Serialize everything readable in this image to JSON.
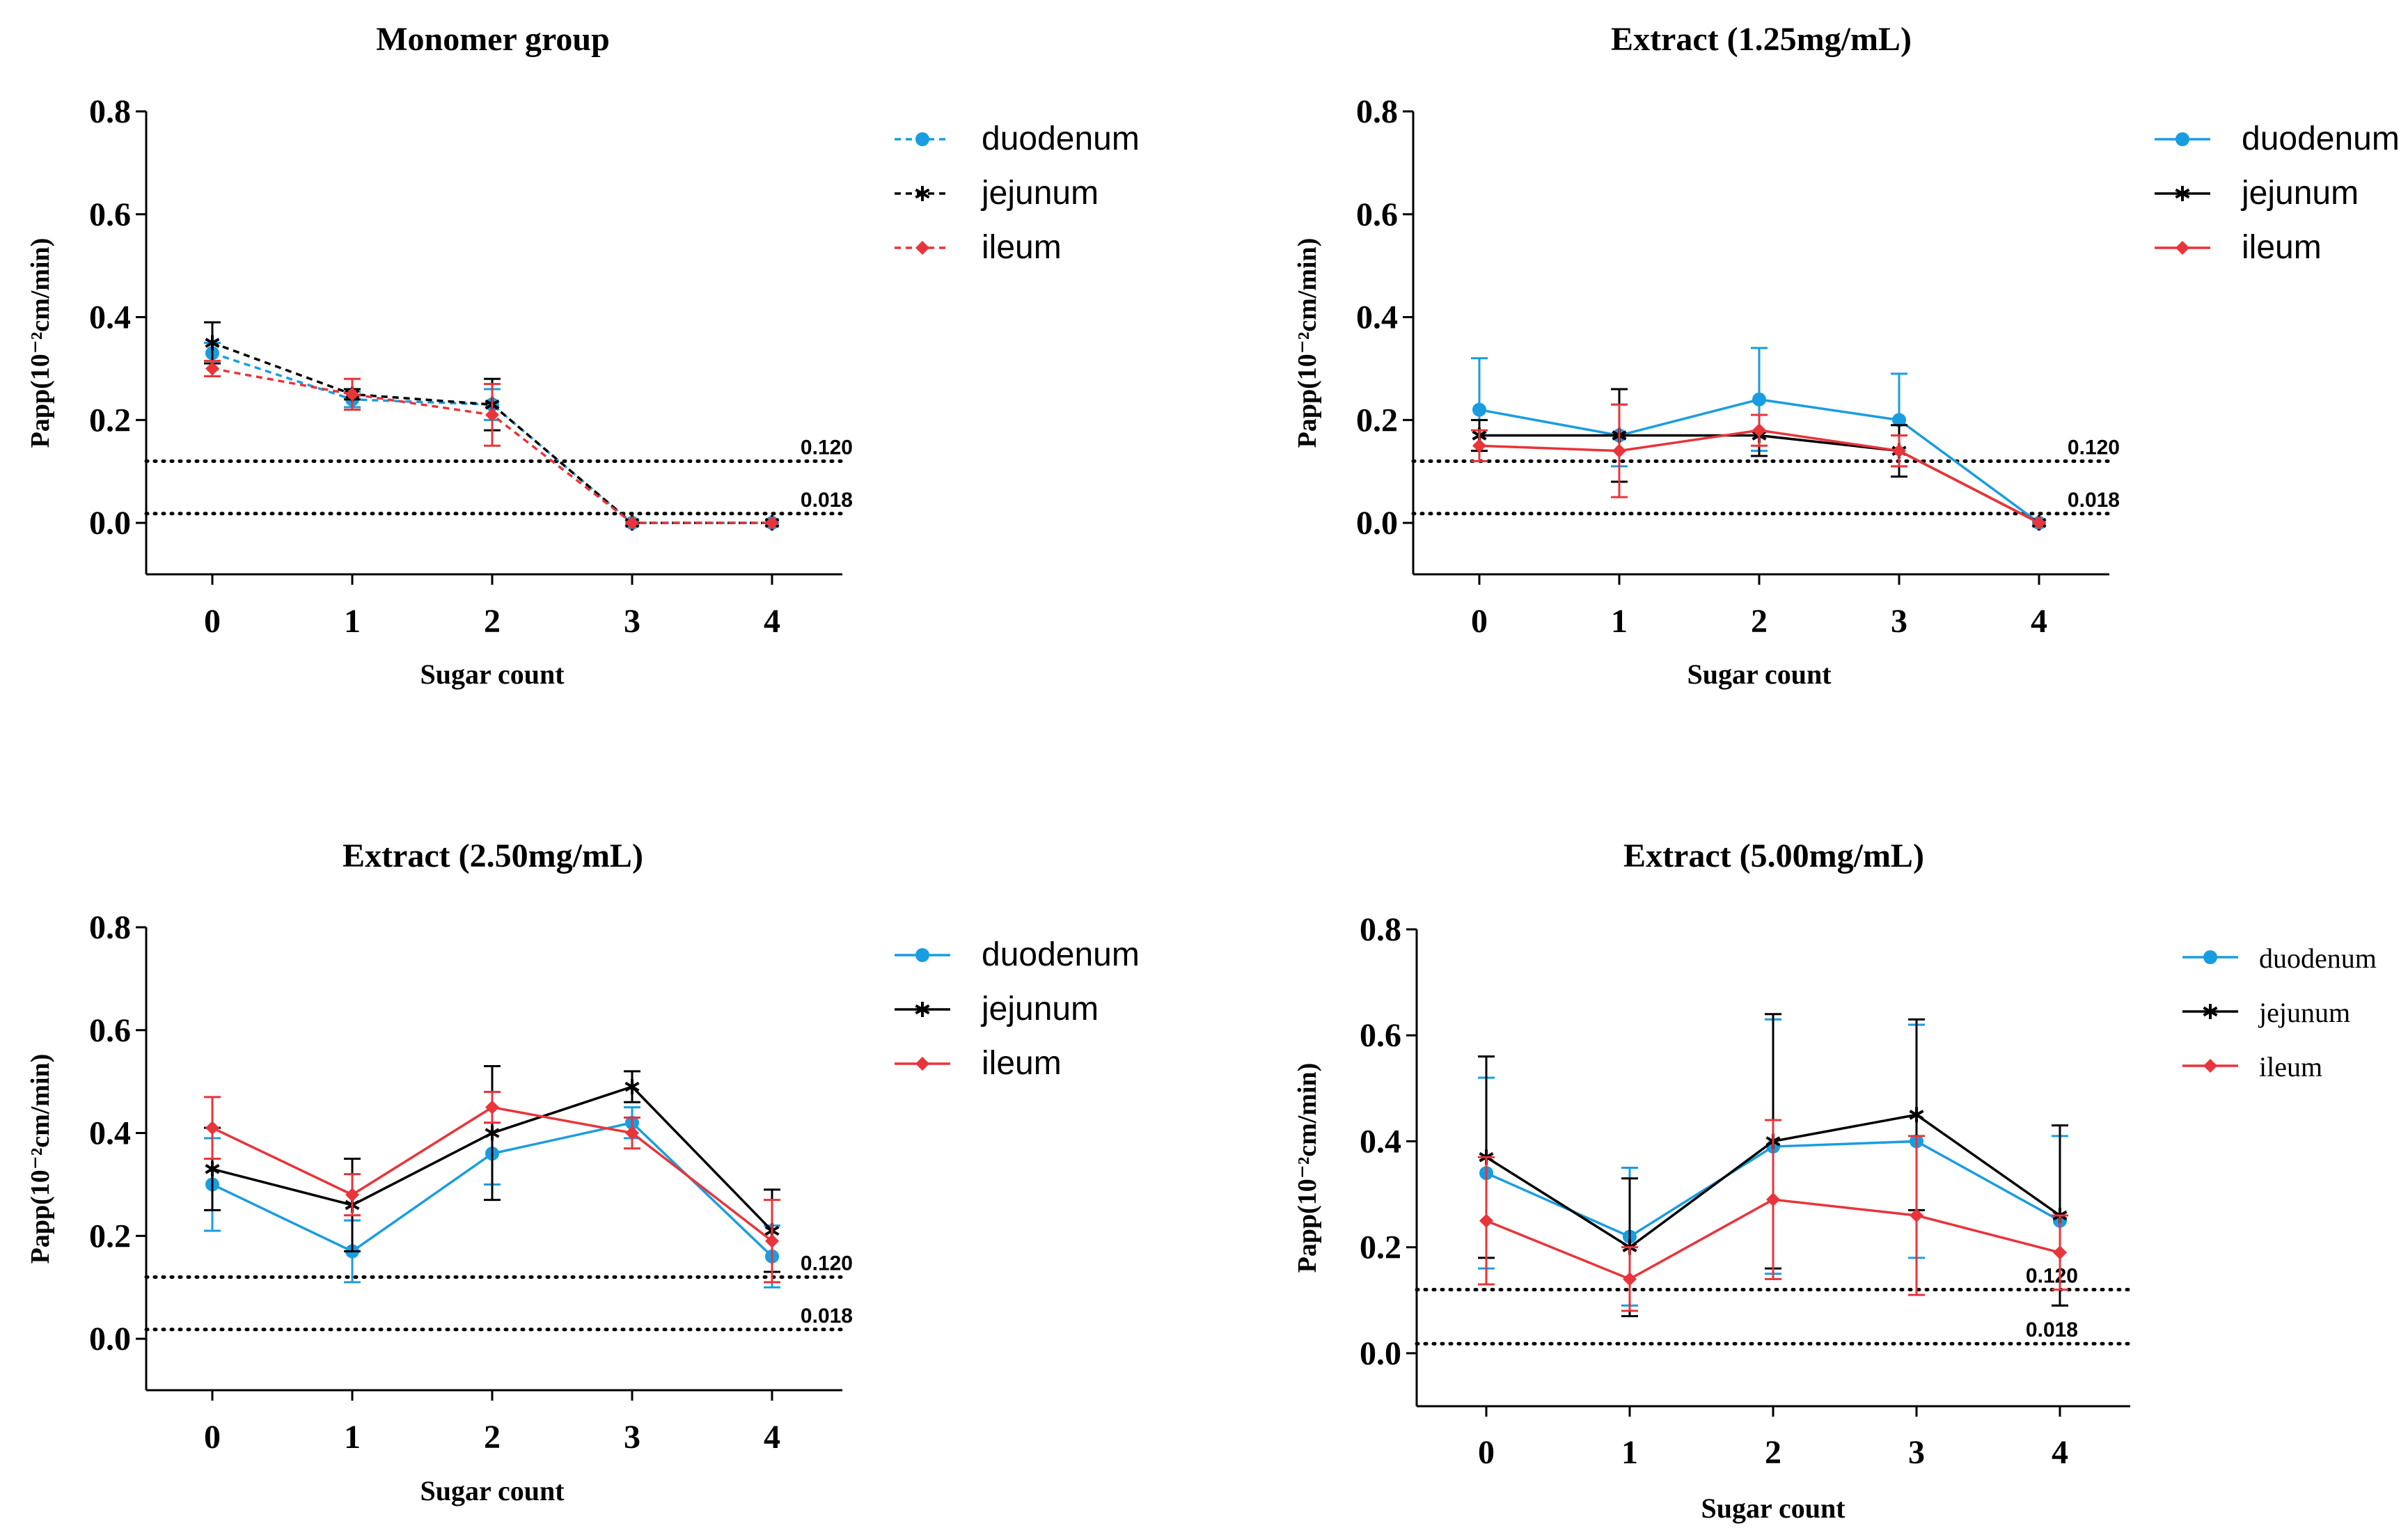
{
  "chart_data": [
    {
      "type": "line",
      "title": "Monomer group",
      "xlabel": "Sugar count",
      "ylabel": "Papp(10⁻²cm/min)",
      "categories": [
        "0",
        "1",
        "2",
        "3",
        "4"
      ],
      "xlim": [
        -0.5,
        4.5
      ],
      "ylim": [
        -0.1,
        0.8
      ],
      "yticks": [
        "0.0",
        "0.2",
        "0.4",
        "0.6",
        "0.8"
      ],
      "yticks_values": [
        0.0,
        0.2,
        0.4,
        0.6,
        0.8
      ],
      "line_style": "dashed",
      "legend_font": "sans",
      "legend_position": "right",
      "reference_lines": [
        {
          "value": 0.12,
          "label": "0.120"
        },
        {
          "value": 0.018,
          "label": "0.018"
        }
      ],
      "series": [
        {
          "name": "duodenum",
          "color": "#1a9de0",
          "marker": "circle",
          "values": [
            0.33,
            0.24,
            0.23,
            0.0,
            0.0
          ],
          "error": [
            0.02,
            0.015,
            0.03,
            0,
            0
          ]
        },
        {
          "name": "jejunum",
          "color": "#000000",
          "marker": "star",
          "values": [
            0.35,
            0.25,
            0.23,
            0.0,
            0.0
          ],
          "error": [
            0.04,
            0.01,
            0.05,
            0,
            0
          ]
        },
        {
          "name": "ileum",
          "color": "#e8343a",
          "marker": "diamond",
          "values": [
            0.3,
            0.25,
            0.21,
            0.0,
            0.0
          ],
          "error": [
            0.015,
            0.03,
            0.06,
            0,
            0
          ]
        }
      ]
    },
    {
      "type": "line",
      "title": "Extract (1.25mg/mL)",
      "xlabel": "Sugar count",
      "ylabel": "Papp(10⁻²cm/min)",
      "categories": [
        "0",
        "1",
        "2",
        "3",
        "4"
      ],
      "xlim": [
        -0.5,
        4.5
      ],
      "ylim": [
        -0.1,
        0.8
      ],
      "yticks": [
        "0.0",
        "0.2",
        "0.4",
        "0.6",
        "0.8"
      ],
      "yticks_values": [
        0.0,
        0.2,
        0.4,
        0.6,
        0.8
      ],
      "line_style": "solid",
      "legend_font": "sans",
      "legend_position": "right",
      "reference_lines": [
        {
          "value": 0.12,
          "label": "0.120"
        },
        {
          "value": 0.018,
          "label": "0.018"
        }
      ],
      "series": [
        {
          "name": "duodenum",
          "color": "#1a9de0",
          "marker": "circle",
          "values": [
            0.22,
            0.17,
            0.24,
            0.2,
            0.0
          ],
          "error": [
            0.1,
            0.06,
            0.1,
            0.09,
            0
          ]
        },
        {
          "name": "jejunum",
          "color": "#000000",
          "marker": "star",
          "values": [
            0.17,
            0.17,
            0.17,
            0.14,
            0.0
          ],
          "error": [
            0.03,
            0.09,
            0.04,
            0.05,
            0
          ]
        },
        {
          "name": "ileum",
          "color": "#e8343a",
          "marker": "diamond",
          "values": [
            0.15,
            0.14,
            0.18,
            0.14,
            0.0
          ],
          "error": [
            0.03,
            0.09,
            0.03,
            0.03,
            0
          ]
        }
      ]
    },
    {
      "type": "line",
      "title": "Extract (2.50mg/mL)",
      "xlabel": "Sugar count",
      "ylabel": "Papp(10⁻²cm/min)",
      "categories": [
        "0",
        "1",
        "2",
        "3",
        "4"
      ],
      "xlim": [
        -0.5,
        4.5
      ],
      "ylim": [
        -0.1,
        0.8
      ],
      "yticks": [
        "0.0",
        "0.2",
        "0.4",
        "0.6",
        "0.8"
      ],
      "yticks_values": [
        0.0,
        0.2,
        0.4,
        0.6,
        0.8
      ],
      "line_style": "solid",
      "legend_font": "sans",
      "legend_position": "right",
      "reference_lines": [
        {
          "value": 0.12,
          "label": "0.120"
        },
        {
          "value": 0.018,
          "label": "0.018"
        }
      ],
      "series": [
        {
          "name": "duodenum",
          "color": "#1a9de0",
          "marker": "circle",
          "values": [
            0.3,
            0.17,
            0.36,
            0.42,
            0.16
          ],
          "error": [
            0.09,
            0.06,
            0.06,
            0.03,
            0.06
          ]
        },
        {
          "name": "jejunum",
          "color": "#000000",
          "marker": "star",
          "values": [
            0.33,
            0.26,
            0.4,
            0.49,
            0.21
          ],
          "error": [
            0.08,
            0.09,
            0.13,
            0.03,
            0.08
          ]
        },
        {
          "name": "ileum",
          "color": "#e8343a",
          "marker": "diamond",
          "values": [
            0.41,
            0.28,
            0.45,
            0.4,
            0.19
          ],
          "error": [
            0.06,
            0.04,
            0.03,
            0.03,
            0.08
          ]
        }
      ]
    },
    {
      "type": "line",
      "title": "Extract (5.00mg/mL)",
      "xlabel": "Sugar count",
      "ylabel": "Papp(10⁻²cm/min)",
      "categories": [
        "0",
        "1",
        "2",
        "3",
        "4"
      ],
      "xlim": [
        -0.5,
        4.5
      ],
      "ylim": [
        -0.1,
        0.8
      ],
      "yticks": [
        "0.0",
        "0.2",
        "0.4",
        "0.6",
        "0.8"
      ],
      "yticks_values": [
        0.0,
        0.2,
        0.4,
        0.6,
        0.8
      ],
      "line_style": "solid",
      "legend_font": "serif",
      "legend_position": "right",
      "reference_lines": [
        {
          "value": 0.12,
          "label": "0.120"
        },
        {
          "value": 0.018,
          "label": "0.018"
        }
      ],
      "series": [
        {
          "name": "duodenum",
          "color": "#1a9de0",
          "marker": "circle",
          "values": [
            0.34,
            0.22,
            0.39,
            0.4,
            0.25
          ],
          "error": [
            0.18,
            0.13,
            0.24,
            0.22,
            0.16
          ]
        },
        {
          "name": "jejunum",
          "color": "#000000",
          "marker": "star",
          "values": [
            0.37,
            0.2,
            0.4,
            0.45,
            0.26
          ],
          "error": [
            0.19,
            0.13,
            0.24,
            0.18,
            0.17
          ]
        },
        {
          "name": "ileum",
          "color": "#e8343a",
          "marker": "diamond",
          "values": [
            0.25,
            0.14,
            0.29,
            0.26,
            0.19
          ],
          "error": [
            0.12,
            0.06,
            0.15,
            0.15,
            0.07
          ]
        }
      ]
    }
  ]
}
